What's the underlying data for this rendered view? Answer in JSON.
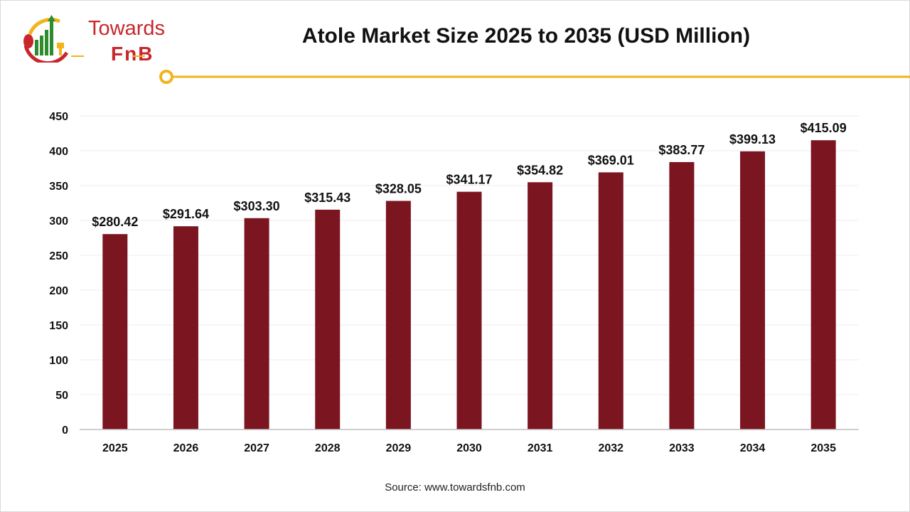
{
  "header": {
    "title": "Atole Market Size 2025 to 2035 (USD Million)",
    "logo_text": "Towards FnB",
    "source": "Source: www.towardsfnb.com"
  },
  "colors": {
    "bar": "#7b1520",
    "accent": "#f2b31c",
    "logo_red": "#c8262c",
    "logo_green": "#2e8b2e"
  },
  "chart_data": {
    "type": "bar",
    "title": "Atole Market Size 2025 to 2035 (USD Million)",
    "categories": [
      "2025",
      "2026",
      "2027",
      "2028",
      "2029",
      "2030",
      "2031",
      "2032",
      "2033",
      "2034",
      "2035"
    ],
    "values": [
      280.42,
      291.64,
      303.3,
      315.43,
      328.05,
      341.17,
      354.82,
      369.01,
      383.77,
      399.13,
      415.09
    ],
    "data_labels": [
      "$280.42",
      "$291.64",
      "$303.30",
      "$315.43",
      "$328.05",
      "$341.17",
      "$354.82",
      "$369.01",
      "$383.77",
      "$399.13",
      "$415.09"
    ],
    "yticks": [
      0,
      50,
      100,
      150,
      200,
      250,
      300,
      350,
      400,
      450
    ],
    "ylim": [
      0,
      450
    ],
    "grid": true,
    "xlabel": "",
    "ylabel": ""
  }
}
